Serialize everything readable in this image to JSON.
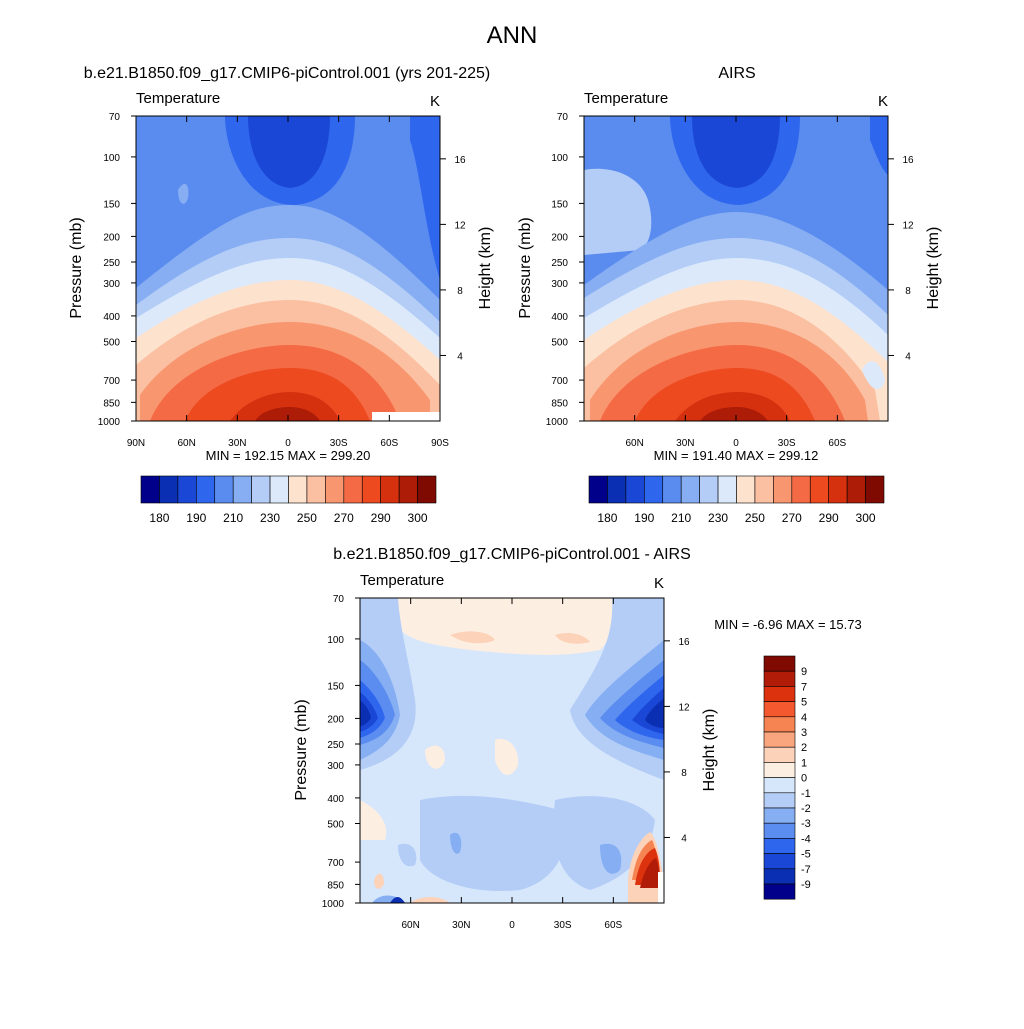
{
  "page_title": "ANN",
  "chart_data": [
    {
      "type": "heatmap",
      "title": "b.e21.B1850.f09_g17.CMIP6-piControl.001 (yrs 201-225)",
      "left_string": "Temperature",
      "right_string": "K",
      "ylabel": "Pressure (mb)",
      "ylabel_right": "Height (km)",
      "x_ticks": [
        "90N",
        "60N",
        "30N",
        "0",
        "30S",
        "60S",
        "90S"
      ],
      "y_ticks": [
        "70",
        "100",
        "150",
        "200",
        "250",
        "300",
        "400",
        "500",
        "700",
        "850",
        "1000"
      ],
      "y_right_ticks": [
        "16",
        "12",
        "8",
        "4"
      ],
      "stats": "MIN = 192.15  MAX = 299.20",
      "min": 192.15,
      "max": 299.2,
      "colorbar_labels": [
        "180",
        "190",
        "210",
        "230",
        "250",
        "270",
        "290",
        "300"
      ],
      "colorbar_colors": [
        "#00008b",
        "#0a2fb3",
        "#1a47d6",
        "#2f66ee",
        "#5a8cf0",
        "#87aef2",
        "#b3cdf7",
        "#dce9fb",
        "#fde2cd",
        "#fbc0a2",
        "#f8966f",
        "#f46a45",
        "#ed4a20",
        "#d6310f",
        "#ad1c07",
        "#7f0a02"
      ]
    },
    {
      "type": "heatmap",
      "title": "AIRS",
      "left_string": "Temperature",
      "right_string": "K",
      "ylabel": "Pressure (mb)",
      "ylabel_right": "Height (km)",
      "x_ticks": [
        "60N",
        "30N",
        "0",
        "30S",
        "60S"
      ],
      "y_ticks": [
        "70",
        "100",
        "150",
        "200",
        "250",
        "300",
        "400",
        "500",
        "700",
        "850",
        "1000"
      ],
      "y_right_ticks": [
        "16",
        "12",
        "8",
        "4"
      ],
      "stats": "MIN = 191.40  MAX = 299.12",
      "min": 191.4,
      "max": 299.12,
      "colorbar_labels": [
        "180",
        "190",
        "210",
        "230",
        "250",
        "270",
        "290",
        "300"
      ]
    },
    {
      "type": "heatmap",
      "title": "b.e21.B1850.f09_g17.CMIP6-piControl.001 - AIRS",
      "left_string": "Temperature",
      "right_string": "K",
      "ylabel": "Pressure (mb)",
      "ylabel_right": "Height (km)",
      "x_ticks": [
        "60N",
        "30N",
        "0",
        "30S",
        "60S"
      ],
      "y_ticks": [
        "70",
        "100",
        "150",
        "200",
        "250",
        "300",
        "400",
        "500",
        "700",
        "850",
        "1000"
      ],
      "y_right_ticks": [
        "16",
        "12",
        "8",
        "4"
      ],
      "stats": "MIN =  -6.96  MAX =  15.73",
      "min": -6.96,
      "max": 15.73,
      "colorbar_labels": [
        "9",
        "7",
        "5",
        "4",
        "3",
        "2",
        "1",
        "0",
        "-1",
        "-2",
        "-3",
        "-4",
        "-5",
        "-7",
        "-9"
      ],
      "colorbar_colors": [
        "#7f0a02",
        "#b01c07",
        "#dc320e",
        "#f4582f",
        "#f68452",
        "#f9a67e",
        "#fcd2b8",
        "#fdeee2",
        "#d6e6fb",
        "#b3cdf7",
        "#86aef3",
        "#5b8cf0",
        "#2f66ee",
        "#1a47d6",
        "#0a2fb3",
        "#00008b"
      ]
    }
  ]
}
